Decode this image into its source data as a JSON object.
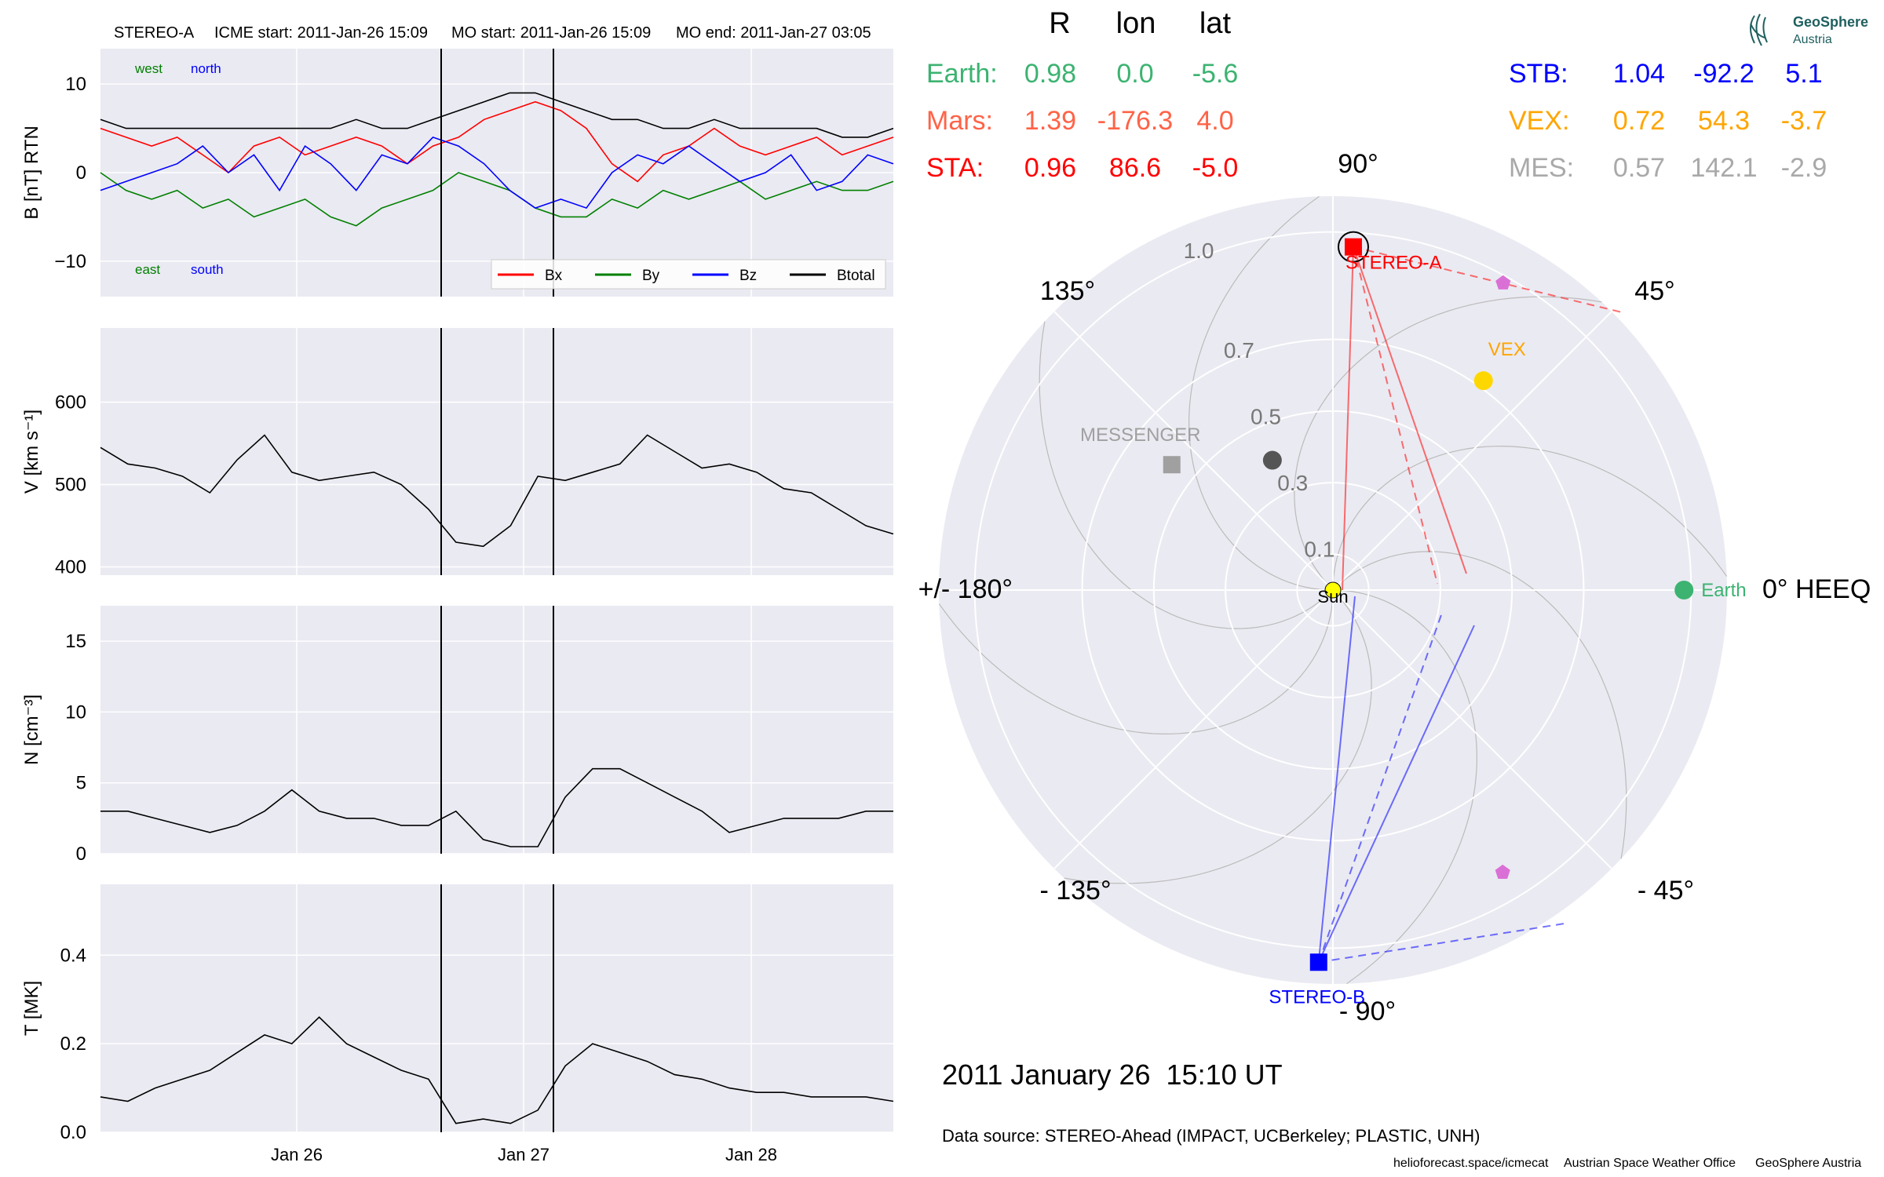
{
  "header": {
    "spacecraft": "STEREO-A",
    "icme_start": "ICME start: 2011-Jan-26 15:09",
    "mo_start": "MO start: 2011-Jan-26 15:09",
    "mo_end": "MO end: 2011-Jan-27 03:05"
  },
  "colors": {
    "panel_bg": "#eaeaf2",
    "bx": "#ff0000",
    "by": "#008000",
    "bz": "#0000ff",
    "btotal": "#000000",
    "earth": "#3cb371",
    "mars": "#ff6347",
    "sta": "#ff0000",
    "stb": "#0000ff",
    "vex": "#ffa500",
    "mes": "#a9a9a9",
    "sun": "#ffff00",
    "probe": "#da70d6"
  },
  "chart_data": [
    {
      "type": "line",
      "name": "magnetic-field",
      "ylabel": "B [nT] RTN",
      "ylim": [
        -14,
        14
      ],
      "yticks": [
        "10",
        "0",
        "−10"
      ],
      "ytick_values": [
        10,
        0,
        -10
      ],
      "direction_labels": [
        "west",
        "north",
        "east",
        "south"
      ],
      "legend": [
        "Bx",
        "By",
        "Bz",
        "Btotal"
      ],
      "legend_position": "lower-right",
      "series": [
        {
          "name": "Bx",
          "values": [
            5,
            4,
            3,
            4,
            2,
            0,
            3,
            4,
            2,
            3,
            4,
            3,
            1,
            3,
            4,
            6,
            7,
            8,
            7,
            5,
            1,
            -1,
            2,
            3,
            5,
            3,
            2,
            3,
            4,
            2,
            3,
            4
          ]
        },
        {
          "name": "By",
          "values": [
            0,
            -2,
            -3,
            -2,
            -4,
            -3,
            -5,
            -4,
            -3,
            -5,
            -6,
            -4,
            -3,
            -2,
            0,
            -1,
            -2,
            -4,
            -5,
            -5,
            -3,
            -4,
            -2,
            -3,
            -2,
            -1,
            -3,
            -2,
            -1,
            -2,
            -2,
            -1
          ]
        },
        {
          "name": "Bz",
          "values": [
            -2,
            -1,
            0,
            1,
            3,
            0,
            2,
            -2,
            3,
            1,
            -2,
            2,
            1,
            4,
            3,
            1,
            -2,
            -4,
            -3,
            -4,
            0,
            2,
            1,
            3,
            1,
            -1,
            0,
            2,
            -2,
            -1,
            2,
            1
          ]
        },
        {
          "name": "Btotal",
          "values": [
            6,
            5,
            5,
            5,
            5,
            5,
            5,
            5,
            5,
            5,
            6,
            5,
            5,
            6,
            7,
            8,
            9,
            9,
            8,
            7,
            6,
            6,
            5,
            5,
            6,
            5,
            5,
            5,
            5,
            4,
            4,
            5
          ]
        }
      ]
    },
    {
      "type": "line",
      "name": "speed",
      "ylabel": "V [km s⁻¹]",
      "ylim": [
        390,
        690
      ],
      "yticks": [
        "600",
        "500",
        "400"
      ],
      "ytick_values": [
        600,
        500,
        400
      ],
      "series": [
        {
          "name": "",
          "values": [
            545,
            525,
            520,
            510,
            490,
            530,
            560,
            515,
            505,
            510,
            515,
            500,
            470,
            430,
            425,
            450,
            510,
            505,
            515,
            525,
            560,
            540,
            520,
            525,
            515,
            495,
            490,
            470,
            450,
            440
          ]
        }
      ]
    },
    {
      "type": "line",
      "name": "density",
      "ylabel": "N [cm⁻³]",
      "ylim": [
        0,
        17.5
      ],
      "yticks": [
        "15",
        "10",
        "5",
        "0"
      ],
      "ytick_values": [
        15,
        10,
        5,
        0
      ],
      "series": [
        {
          "name": "",
          "values": [
            3,
            3,
            2.5,
            2,
            1.5,
            2,
            3,
            4.5,
            3,
            2.5,
            2.5,
            2,
            2,
            3,
            1,
            0.5,
            0.5,
            4,
            6,
            6,
            5,
            4,
            3,
            1.5,
            2,
            2.5,
            2.5,
            2.5,
            3,
            3
          ]
        }
      ]
    },
    {
      "type": "line",
      "name": "temperature",
      "ylabel": "T [MK]",
      "ylim": [
        0,
        0.56
      ],
      "yticks": [
        "0.4",
        "0.2",
        "0.0"
      ],
      "ytick_values": [
        0.4,
        0.2,
        0.0
      ],
      "xticks": [
        "Jan 26",
        "Jan 27",
        "Jan 28"
      ],
      "series": [
        {
          "name": "",
          "values": [
            0.08,
            0.07,
            0.1,
            0.12,
            0.14,
            0.18,
            0.22,
            0.2,
            0.26,
            0.2,
            0.17,
            0.14,
            0.12,
            0.02,
            0.03,
            0.02,
            0.05,
            0.15,
            0.2,
            0.18,
            0.16,
            0.13,
            0.12,
            0.1,
            0.09,
            0.09,
            0.08,
            0.08,
            0.08,
            0.07
          ]
        }
      ]
    },
    {
      "type": "scatter",
      "name": "heliospheric-position-polar",
      "angle_labels": [
        "90°",
        "45°",
        "0° HEEQ",
        "- 45°",
        "- 90°",
        "- 135°",
        "+/- 180°",
        "135°"
      ],
      "radial_labels": [
        "0.1",
        "0.3",
        "0.5",
        "0.7",
        "1.0"
      ],
      "radial_values": [
        0.1,
        0.3,
        0.5,
        0.7,
        1.0
      ],
      "rmax": 1.1,
      "bodies": [
        {
          "name": "Sun",
          "r": 0.0,
          "lon": 0,
          "marker": "circle",
          "color": "#ffff00"
        },
        {
          "name": "Earth",
          "r": 0.98,
          "lon": 0.0,
          "marker": "circle",
          "color": "#3cb371"
        },
        {
          "name": "STEREO-A",
          "r": 0.96,
          "lon": 86.6,
          "marker": "square",
          "color": "#ff0000"
        },
        {
          "name": "STEREO-B",
          "r": 1.04,
          "lon": -92.2,
          "marker": "square",
          "color": "#0000ff"
        },
        {
          "name": "VEX",
          "r": 0.72,
          "lon": 54.3,
          "marker": "circle",
          "color": "#ffd700"
        },
        {
          "name": "MESSENGER",
          "r": 0.57,
          "lon": 142.1,
          "marker": "square",
          "color": "#a0a0a0"
        },
        {
          "name": "",
          "r": 0.4,
          "lon": 115.0,
          "marker": "circle",
          "color": "#555555"
        },
        {
          "name": "",
          "r": 0.98,
          "lon": 61.0,
          "marker": "pentagon",
          "color": "#da70d6"
        },
        {
          "name": "",
          "r": 0.92,
          "lon": -59.0,
          "marker": "pentagon",
          "color": "#da70d6"
        }
      ]
    }
  ],
  "positions_table": {
    "headers": [
      "R",
      "lon",
      "lat"
    ],
    "left": [
      {
        "label": "Earth:",
        "r": "0.98",
        "lon": "0.0",
        "lat": "-5.6"
      },
      {
        "label": "Mars:",
        "r": "1.39",
        "lon": "-176.3",
        "lat": "4.0"
      },
      {
        "label": "STA:",
        "r": "0.96",
        "lon": "86.6",
        "lat": "-5.0"
      }
    ],
    "right": [
      {
        "label": "STB:",
        "r": "1.04",
        "lon": "-92.2",
        "lat": "5.1"
      },
      {
        "label": "VEX:",
        "r": "0.72",
        "lon": "54.3",
        "lat": "-3.7"
      },
      {
        "label": "MES:",
        "r": "0.57",
        "lon": "142.1",
        "lat": "-2.9"
      }
    ]
  },
  "logo": {
    "line1": "GeoSphere",
    "line2": "Austria"
  },
  "timestamp": "2011 January 26  15:10 UT",
  "data_source": "Data source: STEREO-Ahead (IMPACT, UCBerkeley; PLASTIC, UNH)",
  "footer": [
    "helioforecast.space/icmecat",
    "Austrian Space Weather Office",
    "GeoSphere Austria"
  ]
}
